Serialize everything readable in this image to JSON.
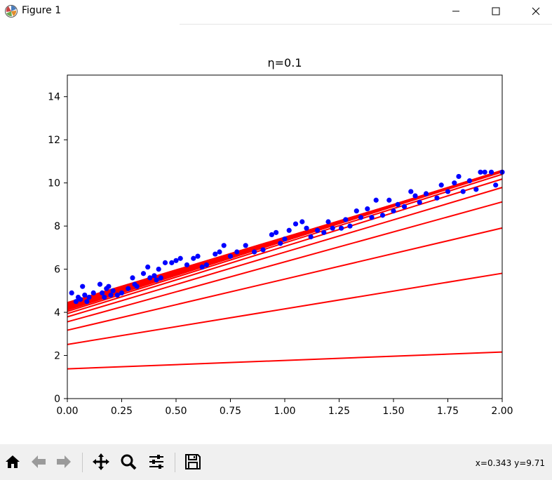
{
  "window": {
    "title": "Figure 1",
    "icons": [
      "matplotlib-logo-icon",
      "minimize-icon",
      "maximize-icon",
      "close-icon"
    ]
  },
  "toolbar": {
    "buttons": [
      "home-icon",
      "back-icon",
      "forward-icon",
      "pan-icon",
      "zoom-icon",
      "configure-subplots-icon",
      "save-icon"
    ],
    "coords": "x=0.343 y=9.71"
  },
  "chart_data": {
    "type": "scatter",
    "title": "η=0.1",
    "xlabel": "",
    "ylabel": "",
    "xlim": [
      0,
      2
    ],
    "ylim": [
      0,
      15
    ],
    "xticks": [
      "0.00",
      "0.25",
      "0.50",
      "0.75",
      "1.00",
      "1.25",
      "1.50",
      "1.75",
      "2.00"
    ],
    "yticks": [
      "0",
      "2",
      "4",
      "6",
      "8",
      "10",
      "12",
      "14"
    ],
    "grid": false,
    "colors": {
      "points": "#0000ff",
      "lines": "#ff0000"
    },
    "series": [
      {
        "kind": "points",
        "x": [
          0.02,
          0.04,
          0.05,
          0.06,
          0.07,
          0.08,
          0.09,
          0.1,
          0.12,
          0.15,
          0.16,
          0.17,
          0.18,
          0.19,
          0.2,
          0.21,
          0.23,
          0.25,
          0.28,
          0.3,
          0.31,
          0.32,
          0.35,
          0.37,
          0.38,
          0.4,
          0.41,
          0.42,
          0.43,
          0.45,
          0.48,
          0.5,
          0.52,
          0.55,
          0.58,
          0.6,
          0.62,
          0.64,
          0.68,
          0.7,
          0.72,
          0.75,
          0.78,
          0.82,
          0.86,
          0.9,
          0.94,
          0.96,
          0.98,
          1.0,
          1.02,
          1.05,
          1.08,
          1.1,
          1.12,
          1.15,
          1.18,
          1.2,
          1.22,
          1.26,
          1.28,
          1.3,
          1.33,
          1.35,
          1.38,
          1.4,
          1.42,
          1.45,
          1.48,
          1.5,
          1.52,
          1.55,
          1.58,
          1.6,
          1.62,
          1.65,
          1.7,
          1.72,
          1.75,
          1.78,
          1.8,
          1.82,
          1.85,
          1.88,
          1.9,
          1.92,
          1.95,
          1.97,
          2.0
        ],
        "y": [
          4.9,
          4.5,
          4.7,
          4.6,
          5.2,
          4.8,
          4.5,
          4.7,
          4.9,
          5.3,
          4.9,
          4.7,
          5.1,
          5.2,
          4.8,
          5.0,
          4.8,
          4.9,
          5.1,
          5.6,
          5.3,
          5.2,
          5.8,
          6.1,
          5.6,
          5.7,
          5.5,
          6.0,
          5.6,
          6.3,
          6.3,
          6.4,
          6.5,
          6.2,
          6.5,
          6.6,
          6.1,
          6.2,
          6.7,
          6.8,
          7.1,
          6.6,
          6.8,
          7.1,
          6.8,
          6.9,
          7.6,
          7.7,
          7.2,
          7.4,
          7.8,
          8.1,
          8.2,
          7.9,
          7.5,
          7.8,
          7.7,
          8.2,
          7.9,
          7.9,
          8.3,
          8.0,
          8.7,
          8.4,
          8.8,
          8.4,
          9.2,
          8.5,
          9.2,
          8.7,
          9.0,
          8.9,
          9.6,
          9.4,
          9.1,
          9.5,
          9.3,
          9.9,
          9.6,
          10.0,
          10.3,
          9.6,
          10.1,
          9.7,
          10.5,
          10.5,
          10.5,
          9.9,
          10.5
        ]
      },
      {
        "kind": "lines",
        "intercepts": [
          1.38,
          2.51,
          3.17,
          3.56,
          3.79,
          3.94,
          4.04,
          4.11,
          4.16,
          4.2,
          4.24,
          4.27,
          4.3,
          4.33,
          4.36,
          4.39,
          4.42,
          4.45
        ],
        "slopes": [
          0.39,
          1.65,
          2.37,
          2.78,
          3.0,
          3.12,
          3.18,
          3.2,
          3.2,
          3.19,
          3.17,
          3.15,
          3.13,
          3.11,
          3.09,
          3.07,
          3.05,
          3.03
        ]
      }
    ]
  }
}
